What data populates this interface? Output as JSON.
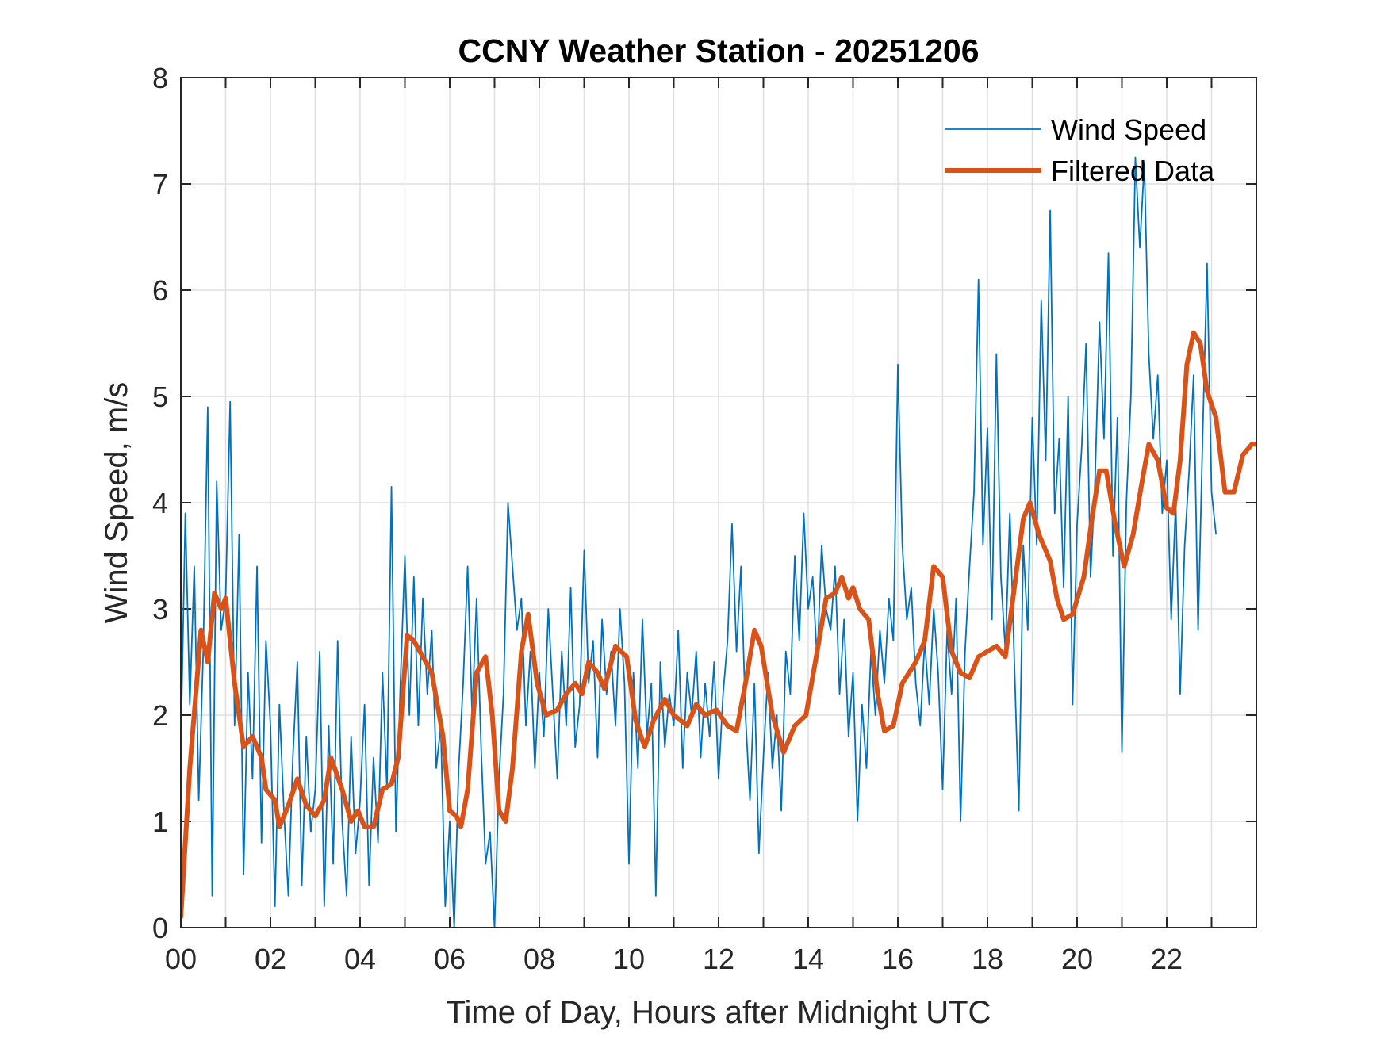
{
  "chart_data": {
    "type": "line",
    "title": "CCNY Weather Station - 20251206",
    "xlabel": "Time of Day, Hours after Midnight UTC",
    "ylabel": "Wind Speed, m/s",
    "xlim": [
      0,
      24
    ],
    "ylim": [
      0,
      8
    ],
    "xticks": [
      0,
      2,
      4,
      6,
      8,
      10,
      12,
      14,
      16,
      18,
      20,
      22
    ],
    "xtick_labels": [
      "00",
      "02",
      "04",
      "06",
      "08",
      "10",
      "12",
      "14",
      "16",
      "18",
      "20",
      "22"
    ],
    "minor_xticks": [
      1,
      3,
      5,
      7,
      9,
      11,
      13,
      15,
      17,
      19,
      21,
      23
    ],
    "yticks": [
      0,
      1,
      2,
      3,
      4,
      5,
      6,
      7,
      8
    ],
    "ytick_labels": [
      "0",
      "1",
      "2",
      "3",
      "4",
      "5",
      "6",
      "7",
      "8"
    ],
    "grid": true,
    "legend_position": "top-right",
    "series": [
      {
        "name": "Wind Speed",
        "color": "#0072BD",
        "x_step_hours": 0.1,
        "values": [
          1.7,
          3.9,
          2.1,
          3.4,
          1.2,
          2.6,
          4.9,
          0.3,
          4.2,
          2.8,
          3.1,
          4.95,
          1.9,
          3.7,
          0.5,
          2.4,
          1.4,
          3.4,
          0.8,
          2.7,
          1.9,
          0.2,
          2.1,
          1.1,
          0.3,
          1.6,
          2.5,
          0.4,
          1.8,
          0.9,
          1.3,
          2.6,
          0.2,
          1.9,
          0.6,
          2.7,
          1.0,
          0.3,
          1.8,
          0.7,
          1.2,
          2.1,
          0.4,
          1.6,
          0.8,
          2.4,
          1.3,
          4.15,
          0.9,
          2.3,
          3.5,
          2.0,
          3.3,
          1.9,
          3.1,
          2.2,
          2.8,
          1.5,
          1.9,
          0.2,
          1.0,
          0.0,
          1.5,
          2.3,
          3.4,
          2.0,
          3.1,
          1.7,
          0.6,
          0.9,
          0.0,
          1.4,
          2.2,
          4.0,
          3.4,
          2.8,
          3.1,
          1.9,
          2.6,
          1.5,
          2.4,
          1.8,
          3.0,
          2.2,
          1.4,
          2.6,
          1.9,
          3.2,
          1.7,
          2.1,
          3.55,
          2.3,
          2.7,
          1.6,
          2.9,
          2.2,
          2.6,
          1.9,
          3.0,
          2.3,
          0.6,
          2.4,
          1.5,
          2.9,
          1.8,
          2.3,
          0.3,
          2.5,
          1.7,
          2.2,
          1.9,
          2.8,
          1.5,
          2.4,
          2.0,
          2.6,
          1.6,
          2.3,
          1.8,
          2.5,
          1.4,
          2.2,
          2.7,
          3.8,
          2.6,
          3.4,
          2.0,
          1.2,
          2.3,
          0.7,
          1.6,
          2.4,
          1.5,
          2.0,
          1.1,
          2.6,
          2.2,
          3.5,
          2.7,
          3.9,
          3.0,
          3.3,
          2.5,
          3.6,
          3.0,
          2.8,
          3.4,
          2.2,
          2.9,
          1.8,
          2.4,
          1.0,
          2.1,
          1.5,
          2.6,
          2.0,
          2.8,
          2.3,
          3.1,
          2.7,
          5.3,
          3.6,
          2.9,
          3.2,
          2.3,
          1.9,
          2.7,
          2.1,
          3.0,
          2.4,
          1.3,
          2.8,
          2.2,
          3.1,
          1.0,
          2.6,
          3.4,
          4.1,
          6.1,
          3.6,
          4.7,
          2.9,
          5.4,
          3.3,
          2.6,
          3.9,
          2.5,
          1.1,
          3.6,
          2.8,
          4.8,
          3.6,
          5.9,
          4.4,
          6.75,
          3.9,
          4.6,
          3.2,
          5.0,
          2.1,
          3.8,
          4.5,
          5.5,
          3.3,
          4.2,
          5.7,
          4.6,
          6.35,
          3.5,
          4.8,
          1.65,
          4.0,
          5.0,
          7.25,
          6.4,
          7.2,
          5.4,
          4.6,
          5.2,
          3.9,
          4.4,
          2.9,
          4.0,
          2.2,
          3.6,
          4.3,
          5.2,
          2.8,
          4.6,
          6.25,
          4.1,
          3.7
        ]
      },
      {
        "name": "Filtered Data",
        "color": "#D95319",
        "x": [
          0.0,
          0.2,
          0.45,
          0.6,
          0.75,
          0.9,
          1.0,
          1.2,
          1.4,
          1.6,
          1.8,
          1.9,
          2.1,
          2.2,
          2.4,
          2.6,
          2.8,
          3.0,
          3.2,
          3.35,
          3.6,
          3.8,
          3.95,
          4.1,
          4.3,
          4.5,
          4.7,
          4.85,
          5.05,
          5.2,
          5.4,
          5.6,
          5.85,
          6.0,
          6.15,
          6.25,
          6.4,
          6.6,
          6.8,
          6.95,
          7.1,
          7.25,
          7.4,
          7.6,
          7.75,
          7.95,
          8.15,
          8.4,
          8.6,
          8.8,
          8.95,
          9.1,
          9.3,
          9.45,
          9.7,
          9.95,
          10.15,
          10.35,
          10.55,
          10.8,
          11.0,
          11.3,
          11.5,
          11.7,
          11.95,
          12.2,
          12.4,
          12.6,
          12.8,
          12.95,
          13.2,
          13.45,
          13.7,
          13.95,
          14.2,
          14.4,
          14.6,
          14.75,
          14.9,
          15.0,
          15.15,
          15.35,
          15.55,
          15.7,
          15.9,
          16.1,
          16.4,
          16.6,
          16.8,
          17.0,
          17.2,
          17.4,
          17.6,
          17.8,
          18.0,
          18.2,
          18.4,
          18.6,
          18.8,
          18.95,
          19.15,
          19.4,
          19.55,
          19.7,
          19.9,
          20.15,
          20.35,
          20.5,
          20.65,
          20.85,
          21.05,
          21.25,
          21.45,
          21.6,
          21.8,
          22.0,
          22.15,
          22.3,
          22.45,
          22.6,
          22.75,
          22.9,
          23.1,
          23.3,
          23.5,
          23.7,
          23.9,
          24.0
        ],
        "values": [
          0.1,
          1.5,
          2.8,
          2.5,
          3.15,
          3.0,
          3.1,
          2.3,
          1.7,
          1.8,
          1.6,
          1.3,
          1.2,
          0.95,
          1.15,
          1.4,
          1.15,
          1.05,
          1.2,
          1.6,
          1.3,
          1.0,
          1.1,
          0.95,
          0.95,
          1.3,
          1.35,
          1.6,
          2.75,
          2.7,
          2.55,
          2.4,
          1.8,
          1.1,
          1.05,
          0.95,
          1.3,
          2.4,
          2.55,
          2.0,
          1.1,
          1.0,
          1.5,
          2.6,
          2.95,
          2.3,
          2.0,
          2.05,
          2.2,
          2.3,
          2.2,
          2.5,
          2.4,
          2.25,
          2.65,
          2.55,
          1.95,
          1.7,
          1.95,
          2.15,
          2.0,
          1.9,
          2.1,
          2.0,
          2.05,
          1.9,
          1.85,
          2.3,
          2.8,
          2.65,
          2.0,
          1.65,
          1.9,
          2.0,
          2.6,
          3.1,
          3.15,
          3.3,
          3.1,
          3.2,
          3.0,
          2.9,
          2.2,
          1.85,
          1.9,
          2.3,
          2.5,
          2.7,
          3.4,
          3.3,
          2.6,
          2.4,
          2.35,
          2.55,
          2.6,
          2.65,
          2.55,
          3.2,
          3.85,
          4.0,
          3.7,
          3.45,
          3.1,
          2.9,
          2.95,
          3.3,
          3.9,
          4.3,
          4.3,
          3.8,
          3.4,
          3.7,
          4.2,
          4.55,
          4.4,
          3.95,
          3.9,
          4.4,
          5.3,
          5.6,
          5.5,
          5.05,
          4.8,
          4.1,
          4.1,
          4.45,
          4.55,
          4.55
        ]
      }
    ]
  }
}
